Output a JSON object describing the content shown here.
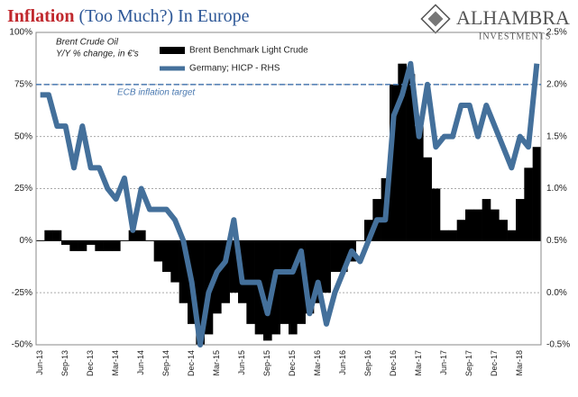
{
  "chart_data": {
    "type": "bar-line",
    "title": {
      "highlight": "Inflation",
      "rest": "(Too Much?) In Europe"
    },
    "annotations": [
      "Brent Crude Oil",
      "Y/Y % change, in €'s",
      "Y/Y % change"
    ],
    "reference_line": {
      "label": "ECB inflation target",
      "value": 2.0,
      "axis": "y2",
      "color": "#4a79b0"
    },
    "categories": [
      "Jun-13",
      null,
      null,
      "Sep-13",
      null,
      null,
      "Dec-13",
      null,
      null,
      "Mar-14",
      null,
      null,
      "Jun-14",
      null,
      null,
      "Sep-14",
      null,
      null,
      "Dec-14",
      null,
      null,
      "Mar-15",
      null,
      null,
      "Jun-15",
      null,
      null,
      "Sep-15",
      null,
      null,
      "Dec-15",
      null,
      null,
      "Mar-16",
      null,
      null,
      "Jun-16",
      null,
      null,
      "Sep-16",
      null,
      null,
      "Dec-16",
      null,
      null,
      "Mar-17",
      null,
      null,
      "Jun-17",
      null,
      null,
      "Sep-17",
      null,
      null,
      "Dec-17",
      null,
      null,
      "Mar-18",
      null,
      null
    ],
    "series": [
      {
        "name": "Brent Benchmark Light Crude",
        "color": "#000000",
        "values": [
          0,
          5,
          5,
          -2,
          -5,
          -5,
          -2,
          -5,
          -5,
          -5,
          0,
          5,
          5,
          0,
          -10,
          -15,
          -20,
          -30,
          -40,
          -50,
          -45,
          -35,
          -30,
          -25,
          -30,
          -40,
          -45,
          -48,
          -45,
          -40,
          -45,
          -40,
          -35,
          -30,
          -25,
          -15,
          -15,
          -10,
          0,
          10,
          20,
          30,
          75,
          85,
          80,
          55,
          40,
          25,
          5,
          5,
          10,
          15,
          15,
          20,
          15,
          10,
          5,
          20,
          35,
          45
        ]
      },
      {
        "name": "Germany; HICP - RHS",
        "color": "#44709b",
        "axis": "y2",
        "values": [
          1.9,
          1.9,
          1.6,
          1.6,
          1.2,
          1.6,
          1.2,
          1.2,
          1.0,
          0.9,
          1.1,
          0.6,
          1.0,
          0.8,
          0.8,
          0.8,
          0.7,
          0.5,
          0.1,
          -0.5,
          0.0,
          0.2,
          0.3,
          0.7,
          0.1,
          0.1,
          0.1,
          -0.2,
          0.2,
          0.2,
          0.2,
          0.4,
          -0.2,
          0.1,
          -0.3,
          0.0,
          0.2,
          0.4,
          0.3,
          0.5,
          0.7,
          0.7,
          1.7,
          1.9,
          2.2,
          1.5,
          2.0,
          1.4,
          1.5,
          1.5,
          1.8,
          1.8,
          1.5,
          1.8,
          1.6,
          1.4,
          1.2,
          1.5,
          1.4,
          2.2
        ]
      }
    ],
    "ylim": [
      -50,
      100
    ],
    "yticks": [
      {
        "value": -50,
        "label": "-50%"
      },
      {
        "value": -25,
        "label": "-25%"
      },
      {
        "value": 0,
        "label": "0%"
      },
      {
        "value": 25,
        "label": "25%"
      },
      {
        "value": 50,
        "label": "50%"
      },
      {
        "value": 75,
        "label": "75%"
      },
      {
        "value": 100,
        "label": "100%"
      }
    ],
    "y2lim": [
      -0.5,
      2.5
    ],
    "y2ticks": [
      {
        "value": -0.5,
        "label": "-0.5%"
      },
      {
        "value": 0,
        "label": "0.0%"
      },
      {
        "value": 0.5,
        "label": "0.5%"
      },
      {
        "value": 1,
        "label": "1.0%"
      },
      {
        "value": 1.5,
        "label": "1.5%"
      },
      {
        "value": 2,
        "label": "2.0%"
      },
      {
        "value": 2.5,
        "label": "2.5%"
      }
    ],
    "grid": true,
    "legend": "top-left"
  },
  "branding": {
    "name": "ALHAMBRA",
    "tagline": "INVESTMENTS"
  }
}
